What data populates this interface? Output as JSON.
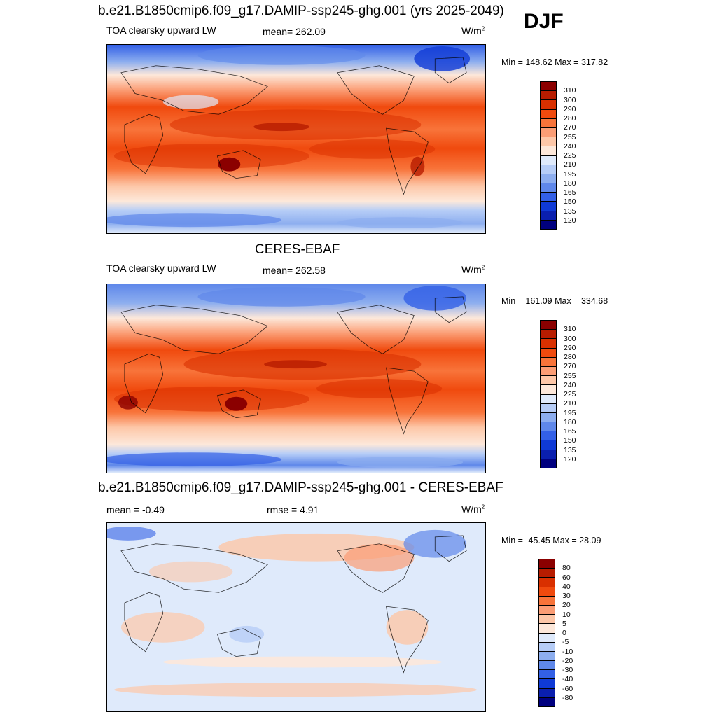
{
  "season": "DJF",
  "units_base": "W/m",
  "units_exp": "2",
  "panel1": {
    "title": "b.e21.B1850cmip6.f09_g17.DAMIP-ssp245-ghg.001 (yrs 2025-2049)",
    "variable": "TOA clearsky upward LW",
    "mean": "mean= 262.09",
    "minmax": "Min = 148.62 Max = 317.82"
  },
  "panel2": {
    "title": "CERES-EBAF",
    "variable": "TOA clearsky upward LW",
    "mean": "mean= 262.58",
    "minmax": "Min = 161.09 Max = 334.68"
  },
  "panel3": {
    "title": "b.e21.B1850cmip6.f09_g17.DAMIP-ssp245-ghg.001 - CERES-EBAF",
    "mean": "mean =  -0.49",
    "rmse": "rmse =   4.91",
    "minmax": "Min = -45.45 Max =  28.09"
  },
  "colorbar_abs": {
    "labels": [
      "310",
      "300",
      "290",
      "280",
      "270",
      "255",
      "240",
      "225",
      "210",
      "195",
      "180",
      "165",
      "150",
      "135",
      "120"
    ],
    "colors": [
      "#8b0000",
      "#b71c00",
      "#d93000",
      "#f04a0e",
      "#f8743a",
      "#fb9d75",
      "#fdc7a8",
      "#fde8da",
      "#dfeafb",
      "#b6cdf7",
      "#8daeef",
      "#5f88ea",
      "#3360e6",
      "#0f3ad6",
      "#0a1fae",
      "#00007f"
    ]
  },
  "colorbar_diff": {
    "labels": [
      "80",
      "60",
      "40",
      "30",
      "20",
      "10",
      "5",
      "0",
      "-5",
      "-10",
      "-20",
      "-30",
      "-40",
      "-60",
      "-80"
    ],
    "colors": [
      "#8b0000",
      "#b71c00",
      "#d93000",
      "#f04a0e",
      "#f8743a",
      "#fb9d75",
      "#fdc7a8",
      "#fde8da",
      "#dfeafb",
      "#b6cdf7",
      "#8daeef",
      "#5f88ea",
      "#3360e6",
      "#0f3ad6",
      "#0a1fae",
      "#00007f"
    ]
  }
}
